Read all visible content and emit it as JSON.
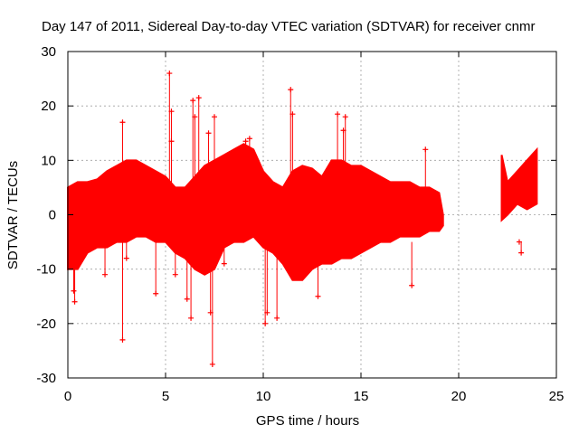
{
  "chart_data": {
    "type": "scatter",
    "title": "Day 147 of 2011, Sidereal Day-to-day VTEC variation (SDTVAR) for receiver cnmr",
    "xlabel": "GPS time / hours",
    "ylabel": "SDTVAR / TECUs",
    "xlim": [
      0,
      25
    ],
    "ylim": [
      -30,
      30
    ],
    "x_ticks": [
      0,
      5,
      10,
      15,
      20,
      25
    ],
    "y_ticks": [
      -30,
      -20,
      -10,
      0,
      10,
      20,
      30
    ],
    "x_tick_labels": [
      "0",
      "5",
      "10",
      "15",
      "20",
      "25"
    ],
    "y_tick_labels": [
      "-30",
      "-20",
      "-10",
      "0",
      "10",
      "20",
      "30"
    ],
    "grid": true,
    "marker": "+",
    "color": "#ff0000",
    "envelope": {
      "x": [
        0,
        0.5,
        1,
        1.5,
        2,
        2.5,
        3,
        3.5,
        4,
        4.5,
        5,
        5.5,
        6,
        6.5,
        7,
        7.5,
        8,
        8.5,
        9,
        9.5,
        10,
        10.5,
        11,
        11.5,
        12,
        12.5,
        13,
        13.5,
        14,
        14.5,
        15,
        15.5,
        16,
        16.5,
        17,
        17.5,
        18,
        18.5,
        19,
        19.2
      ],
      "upper": [
        5,
        6,
        6,
        6.5,
        8,
        9,
        10,
        10,
        9,
        8,
        7,
        5,
        5,
        7,
        9,
        10,
        11,
        12,
        13,
        12,
        8,
        6,
        5,
        8,
        9,
        8.5,
        7,
        10,
        10,
        9,
        9,
        8,
        7,
        6,
        6,
        6,
        5,
        5,
        4,
        0
      ],
      "lower": [
        -10,
        -10,
        -7,
        -6,
        -6,
        -5,
        -5,
        -4,
        -4,
        -5,
        -5,
        -7,
        -8,
        -10,
        -11,
        -10,
        -6,
        -5,
        -5,
        -4,
        -6,
        -7,
        -9,
        -12,
        -12,
        -10,
        -9,
        -9,
        -8,
        -8,
        -7,
        -6,
        -5,
        -5,
        -4,
        -4,
        -4,
        -3,
        -3,
        -2
      ]
    },
    "envelope_segment_2": {
      "x": [
        22.2,
        22.5,
        23,
        23.5,
        24
      ],
      "upper": [
        11,
        6,
        8,
        10,
        12
      ],
      "lower": [
        -1,
        0,
        2,
        1,
        2
      ]
    },
    "outliers": [
      {
        "x": 0.3,
        "y": -14
      },
      {
        "x": 0.35,
        "y": -16
      },
      {
        "x": 2.8,
        "y": 17
      },
      {
        "x": 2.8,
        "y": -23
      },
      {
        "x": 5.2,
        "y": 26
      },
      {
        "x": 5.3,
        "y": 19
      },
      {
        "x": 5.3,
        "y": 13.5
      },
      {
        "x": 4.5,
        "y": -14.5
      },
      {
        "x": 6.1,
        "y": -15.5
      },
      {
        "x": 6.4,
        "y": 21
      },
      {
        "x": 6.7,
        "y": 21.5
      },
      {
        "x": 6.5,
        "y": 18
      },
      {
        "x": 7.3,
        "y": -18
      },
      {
        "x": 7.4,
        "y": -27.5
      },
      {
        "x": 7.5,
        "y": 18
      },
      {
        "x": 7.2,
        "y": 15
      },
      {
        "x": 10.2,
        "y": -18
      },
      {
        "x": 10.1,
        "y": -20
      },
      {
        "x": 10.7,
        "y": -19
      },
      {
        "x": 11.4,
        "y": 23
      },
      {
        "x": 11.5,
        "y": 18.5
      },
      {
        "x": 12.8,
        "y": -15
      },
      {
        "x": 13.8,
        "y": 18.5
      },
      {
        "x": 14.2,
        "y": 18
      },
      {
        "x": 14.1,
        "y": 15.5
      },
      {
        "x": 18.3,
        "y": 12
      },
      {
        "x": 17.6,
        "y": -13
      },
      {
        "x": 23.2,
        "y": -7
      },
      {
        "x": 23.1,
        "y": -5
      },
      {
        "x": 9.3,
        "y": 14
      },
      {
        "x": 9.1,
        "y": 13.5
      },
      {
        "x": 3.0,
        "y": -8
      },
      {
        "x": 1.9,
        "y": -11
      },
      {
        "x": 5.5,
        "y": -11
      },
      {
        "x": 6.3,
        "y": -19
      },
      {
        "x": 8.0,
        "y": -9
      }
    ]
  }
}
